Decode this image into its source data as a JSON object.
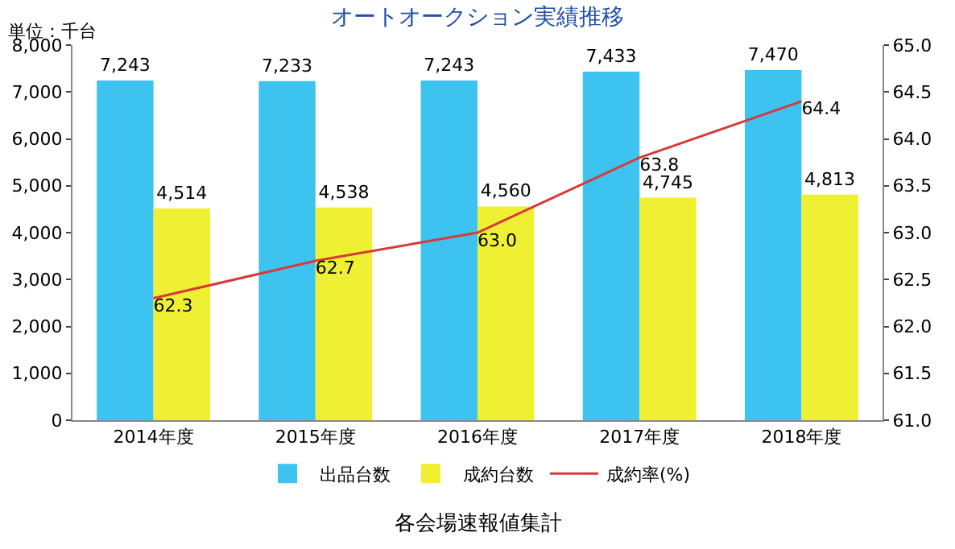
{
  "chart_data": {
    "type": "bar",
    "title": "オートオークション実績推移",
    "ylabel": "単位：千台",
    "categories": [
      "2014年度",
      "2015年度",
      "2016年度",
      "2017年度",
      "2018年度"
    ],
    "series": [
      {
        "name": "出品台数",
        "color": "#3cc3f0",
        "values": [
          7243,
          7233,
          7243,
          7433,
          7470
        ],
        "value_labels": [
          "7,243",
          "7,233",
          "7,243",
          "7,433",
          "7,470"
        ]
      },
      {
        "name": "成約台数",
        "color": "#f0f032",
        "values": [
          4514,
          4538,
          4560,
          4745,
          4813
        ],
        "value_labels": [
          "4,514",
          "4,538",
          "4,560",
          "4,745",
          "4,813"
        ]
      },
      {
        "name": "成約率(%)",
        "type": "line",
        "axis": "y2",
        "color": "#d63a3a",
        "values": [
          62.3,
          62.7,
          63.0,
          63.8,
          64.4
        ],
        "value_labels": [
          "62.3",
          "62.7",
          "63.0",
          "63.8",
          "64.4"
        ]
      }
    ],
    "ylim": [
      0,
      8000
    ],
    "yticks": [
      0,
      {
        "value": 1000,
        "label": "1,000"
      },
      {
        "value": 2000,
        "label": "2,000"
      },
      {
        "value": 3000,
        "label": "3,000"
      },
      {
        "value": 4000,
        "label": "4,000"
      },
      {
        "value": 5000,
        "label": "5,000"
      },
      {
        "value": 6000,
        "label": "6,000"
      },
      {
        "value": 7000,
        "label": "7,000"
      },
      {
        "value": 8000,
        "label": "8,000"
      }
    ],
    "y2lim": [
      61,
      65
    ],
    "y2ticks": [
      {
        "value": 61,
        "label": "61.0"
      },
      61.5,
      {
        "value": 62,
        "label": "62.0"
      },
      62.5,
      {
        "value": 63,
        "label": "63.0"
      },
      63.5,
      {
        "value": 64,
        "label": "64.0"
      },
      64.5,
      {
        "value": 65,
        "label": "65.0"
      }
    ],
    "legend": "bottom",
    "annotations": [
      "各会場速報値集計"
    ]
  }
}
